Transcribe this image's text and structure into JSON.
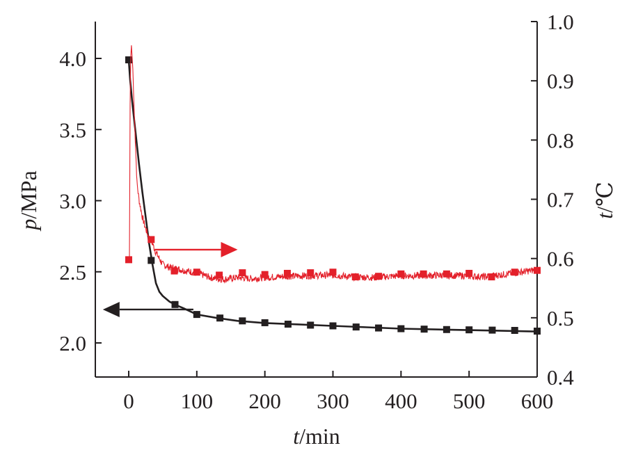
{
  "chart_data": {
    "type": "line",
    "xlabel_var": "t",
    "xlabel_unit": "/min",
    "ylabel_left_var": "p",
    "ylabel_left_unit": "/MPa",
    "ylabel_right_var": "t",
    "ylabel_right_unit": "/℃",
    "xlim": [
      -48,
      600
    ],
    "ylim_left": [
      1.75,
      4.25
    ],
    "ylim_right": [
      0.4,
      1.0
    ],
    "x_ticks": [
      0,
      100,
      200,
      300,
      400,
      500,
      600
    ],
    "x_tick_labels": [
      "0",
      "100",
      "200",
      "300",
      "400",
      "500",
      "600"
    ],
    "y_left_ticks": [
      2.0,
      2.5,
      3.0,
      3.5,
      4.0
    ],
    "y_left_tick_labels": [
      "2.0",
      "2.5",
      "3.0",
      "3.5",
      "4.0"
    ],
    "y_right_ticks": [
      0.4,
      0.5,
      0.6,
      0.7,
      0.8,
      0.9,
      1.0
    ],
    "y_right_tick_labels": [
      "0.4",
      "0.5",
      "0.6",
      "0.7",
      "0.8",
      "0.9",
      "1.0"
    ],
    "grid": false,
    "series": [
      {
        "axis": "left",
        "color": "#231f20",
        "marker": "square",
        "curve": [
          [
            0,
            3.99
          ],
          [
            2,
            3.85
          ],
          [
            5,
            3.7
          ],
          [
            10,
            3.48
          ],
          [
            15,
            3.26
          ],
          [
            20,
            3.06
          ],
          [
            25,
            2.88
          ],
          [
            30,
            2.7
          ],
          [
            35,
            2.55
          ],
          [
            40,
            2.42
          ],
          [
            45,
            2.36
          ],
          [
            50,
            2.33
          ],
          [
            60,
            2.29
          ],
          [
            70,
            2.265
          ],
          [
            80,
            2.245
          ],
          [
            100,
            2.2
          ],
          [
            130,
            2.175
          ],
          [
            160,
            2.155
          ],
          [
            200,
            2.14
          ],
          [
            250,
            2.13
          ],
          [
            300,
            2.12
          ],
          [
            350,
            2.11
          ],
          [
            400,
            2.1
          ],
          [
            450,
            2.095
          ],
          [
            500,
            2.09
          ],
          [
            550,
            2.085
          ],
          [
            600,
            2.08
          ]
        ],
        "points": [
          [
            0,
            3.99
          ],
          [
            33,
            2.58
          ],
          [
            68,
            2.27
          ],
          [
            100,
            2.2
          ],
          [
            134,
            2.175
          ],
          [
            167,
            2.155
          ],
          [
            200,
            2.142
          ],
          [
            234,
            2.132
          ],
          [
            267,
            2.125
          ],
          [
            300,
            2.12
          ],
          [
            334,
            2.112
          ],
          [
            367,
            2.105
          ],
          [
            400,
            2.1
          ],
          [
            434,
            2.097
          ],
          [
            467,
            2.094
          ],
          [
            500,
            2.092
          ],
          [
            534,
            2.09
          ],
          [
            567,
            2.088
          ],
          [
            600,
            2.083
          ]
        ]
      },
      {
        "axis": "right",
        "color": "#e3202a",
        "marker": "square",
        "curve": [
          [
            1,
            0.598
          ],
          [
            2,
            0.86
          ],
          [
            3,
            0.94
          ],
          [
            4,
            0.96
          ],
          [
            6,
            0.92
          ],
          [
            8,
            0.85
          ],
          [
            10,
            0.79
          ],
          [
            12,
            0.73
          ],
          [
            15,
            0.7
          ],
          [
            20,
            0.67
          ],
          [
            25,
            0.65
          ],
          [
            30,
            0.635
          ],
          [
            35,
            0.625
          ],
          [
            40,
            0.61
          ],
          [
            45,
            0.6
          ],
          [
            50,
            0.59
          ],
          [
            60,
            0.585
          ],
          [
            70,
            0.583
          ],
          [
            80,
            0.58
          ],
          [
            90,
            0.578
          ],
          [
            100,
            0.575
          ],
          [
            110,
            0.572
          ],
          [
            120,
            0.568
          ],
          [
            130,
            0.566
          ],
          [
            140,
            0.565
          ],
          [
            160,
            0.568
          ],
          [
            180,
            0.566
          ],
          [
            200,
            0.568
          ],
          [
            230,
            0.57
          ],
          [
            260,
            0.571
          ],
          [
            300,
            0.572
          ],
          [
            330,
            0.569
          ],
          [
            360,
            0.568
          ],
          [
            400,
            0.571
          ],
          [
            430,
            0.571
          ],
          [
            460,
            0.572
          ],
          [
            490,
            0.571
          ],
          [
            520,
            0.569
          ],
          [
            550,
            0.573
          ],
          [
            575,
            0.577
          ],
          [
            600,
            0.581
          ]
        ],
        "points": [
          [
            0,
            0.598
          ],
          [
            33,
            0.632
          ],
          [
            67,
            0.579
          ],
          [
            100,
            0.577
          ],
          [
            133,
            0.572
          ],
          [
            167,
            0.576
          ],
          [
            200,
            0.573
          ],
          [
            233,
            0.575
          ],
          [
            267,
            0.576
          ],
          [
            300,
            0.577
          ],
          [
            333,
            0.569
          ],
          [
            367,
            0.57
          ],
          [
            400,
            0.574
          ],
          [
            433,
            0.574
          ],
          [
            467,
            0.574
          ],
          [
            500,
            0.575
          ],
          [
            533,
            0.569
          ],
          [
            567,
            0.577
          ],
          [
            600,
            0.58
          ]
        ]
      }
    ],
    "annotations": [
      {
        "type": "arrow",
        "direction": "right",
        "color": "#e3202a",
        "meaning": "red series reads right axis",
        "from_x": 38,
        "to_x": 160,
        "y_right": 0.615
      },
      {
        "type": "arrow",
        "direction": "left",
        "color": "#231f20",
        "meaning": "black series reads left axis",
        "from_x": 95,
        "to_x": -38,
        "y_left": 2.235
      }
    ]
  }
}
